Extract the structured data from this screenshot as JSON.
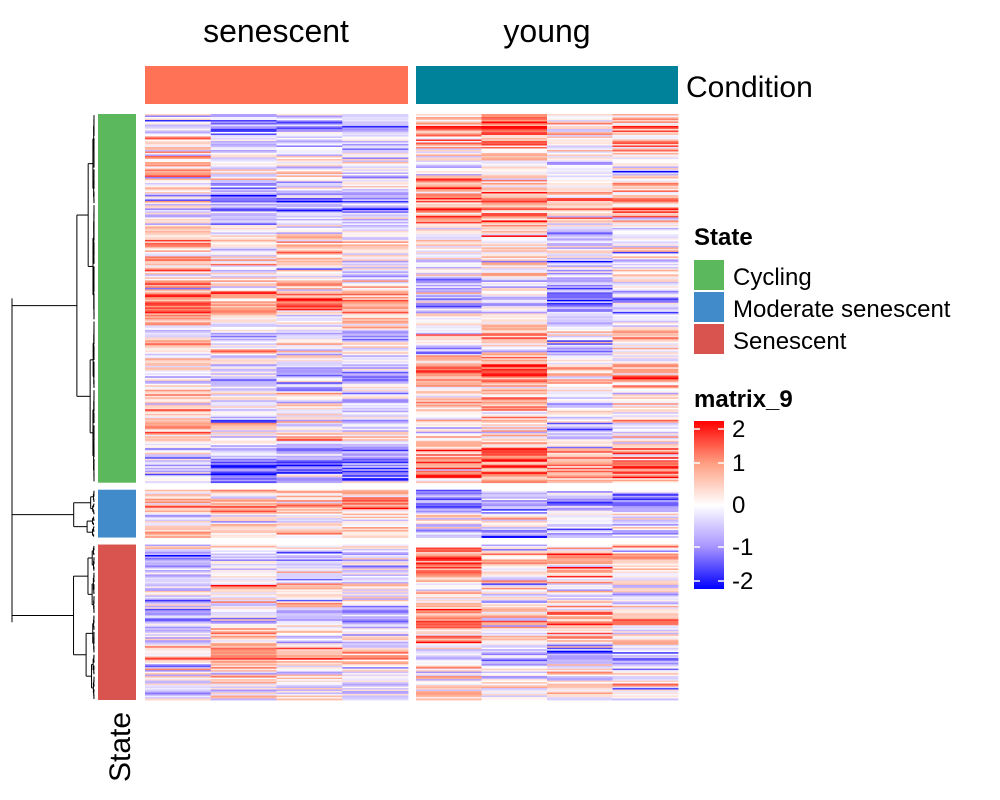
{
  "chart_data": {
    "type": "heatmap",
    "heatmap_name": "matrix_9",
    "column_groups": [
      {
        "label": "senescent",
        "color": "#FF7256",
        "n_columns": 4
      },
      {
        "label": "young",
        "color": "#00829A",
        "n_columns": 4
      }
    ],
    "column_annotation_title": "Condition",
    "row_annotation_title": "State",
    "row_groups": [
      {
        "label": "Cycling",
        "color": "#5CB85C",
        "relative_size": 370
      },
      {
        "label": "Moderate senescent",
        "color": "#428BCA",
        "relative_size": 48
      },
      {
        "label": "Senescent",
        "color": "#D9534F",
        "relative_size": 156
      }
    ],
    "color_scale": {
      "title": "matrix_9",
      "breaks": [
        2,
        1,
        0,
        -1,
        -2
      ],
      "colors": [
        "#FF0000",
        "#FF9E81",
        "#FFFFFF",
        "#A894FF",
        "#0000FF"
      ],
      "range": [
        -2,
        2
      ]
    },
    "legend_state": {
      "title": "State",
      "entries": [
        "Cycling",
        "Moderate senescent",
        "Senescent"
      ],
      "colors": [
        "#5CB85C",
        "#428BCA",
        "#D9534F"
      ]
    },
    "row_dendrogram": true,
    "values_note": ""
  }
}
